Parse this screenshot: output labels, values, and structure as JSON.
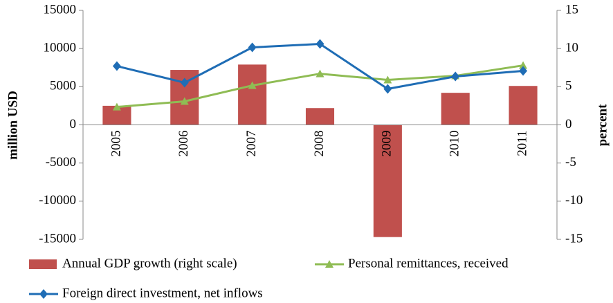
{
  "chart_data": {
    "type": "combo",
    "categories": [
      "2005",
      "2006",
      "2007",
      "2008",
      "2009",
      "2010",
      "2011"
    ],
    "ylabel": "million USD",
    "y2label": "percent",
    "ylim": [
      -15000,
      15000
    ],
    "yticks": [
      -15000,
      -10000,
      -5000,
      0,
      5000,
      10000,
      15000
    ],
    "y2lim": [
      -15,
      15
    ],
    "y2ticks": [
      -15,
      -10,
      -5,
      0,
      5,
      10,
      15
    ],
    "grid": false,
    "series": [
      {
        "name": "Annual GDP growth (right scale)",
        "type": "bar",
        "axis": "y2",
        "color": "#c0504d",
        "values": [
          2.5,
          7.2,
          7.9,
          2.2,
          -14.7,
          4.2,
          5.1
        ]
      },
      {
        "name": "Personal remittances, received",
        "type": "line",
        "marker": "triangle",
        "color": "#8fbc54",
        "values": [
          2350,
          3080,
          5160,
          6700,
          5890,
          6430,
          7790
        ]
      },
      {
        "name": "Foreign direct investment, net inflows",
        "type": "line",
        "marker": "diamond",
        "color": "#1f6db5",
        "values": [
          7700,
          5530,
          10150,
          10600,
          4710,
          6340,
          7070
        ]
      }
    ]
  }
}
